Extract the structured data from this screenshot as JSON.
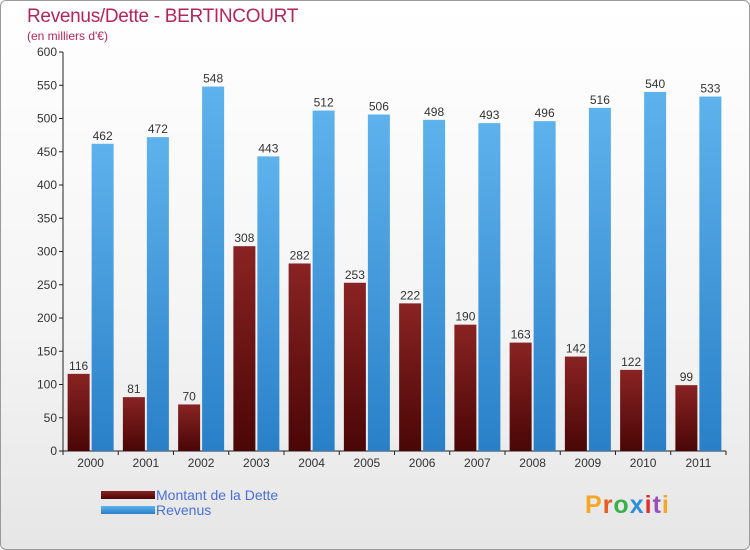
{
  "chart_data": {
    "type": "bar",
    "title": "Revenus/Dette - BERTINCOURT",
    "subtitle": "(en milliers d'€)",
    "categories": [
      "2000",
      "2001",
      "2002",
      "2003",
      "2004",
      "2005",
      "2006",
      "2007",
      "2008",
      "2009",
      "2010",
      "2011"
    ],
    "series": [
      {
        "name": "Montant de la Dette",
        "color": "#6b1010",
        "values": [
          116,
          81,
          70,
          308,
          282,
          253,
          222,
          190,
          163,
          142,
          122,
          99
        ]
      },
      {
        "name": "Revenus",
        "color": "#3e97dc",
        "values": [
          462,
          472,
          548,
          443,
          512,
          506,
          498,
          493,
          496,
          516,
          540,
          533
        ]
      }
    ],
    "ylim": [
      0,
      600
    ],
    "yticks": [
      0,
      50,
      100,
      150,
      200,
      250,
      300,
      350,
      400,
      450,
      500,
      550,
      600
    ],
    "grid": false,
    "legend_position": "bottom-left"
  },
  "logo": {
    "text": "Proxiti",
    "colors": [
      "#f5a623",
      "#e85a1e",
      "#3ab14a",
      "#2f8fd8",
      "#e03030",
      "#9b4fb8",
      "#f5a623"
    ]
  }
}
